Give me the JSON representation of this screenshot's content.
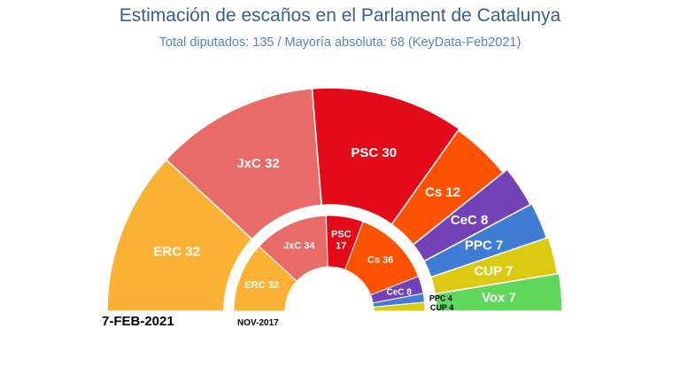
{
  "header": {
    "title": "Estimación de escaños en el Parlament de Catalunya",
    "subtitle": "Total diputados: 135 / Mayoría absoluta: 68 (KeyData-Feb2021)"
  },
  "chart_data": [
    {
      "type": "parliament-donut",
      "date_label": "7-FEB-2021",
      "total": 135,
      "series": [
        {
          "party": "ERC",
          "seats": 32,
          "label": "ERC 32",
          "color": "#fbb133"
        },
        {
          "party": "JxC",
          "seats": 32,
          "label": "JxC 32",
          "color": "#e96b68"
        },
        {
          "party": "PSC",
          "seats": 30,
          "label": "PSC 30",
          "color": "#e30b18"
        },
        {
          "party": "Cs",
          "seats": 12,
          "label": "Cs 12",
          "color": "#fd5201"
        },
        {
          "party": "CeC",
          "seats": 8,
          "label": "CeC 8",
          "color": "#7442b8"
        },
        {
          "party": "PPC",
          "seats": 7,
          "label": "PPC 7",
          "color": "#3f7dd4"
        },
        {
          "party": "CUP",
          "seats": 7,
          "label": "CUP 7",
          "color": "#dcca12"
        },
        {
          "party": "Vox",
          "seats": 7,
          "label": "Vox 7",
          "color": "#5ed75a"
        }
      ]
    },
    {
      "type": "parliament-donut",
      "date_label": "NOV-2017",
      "total": 135,
      "series": [
        {
          "party": "ERC",
          "seats": 32,
          "label": "ERC 32",
          "color": "#fbb133"
        },
        {
          "party": "JxC",
          "seats": 34,
          "label": "JxC 34",
          "color": "#e96b68"
        },
        {
          "party": "PSC",
          "seats": 17,
          "label": "PSC\n17",
          "color": "#e30b18"
        },
        {
          "party": "Cs",
          "seats": 36,
          "label": "Cs 36",
          "color": "#fd5201"
        },
        {
          "party": "CeC",
          "seats": 8,
          "label": "CeC 8",
          "color": "#7442b8"
        },
        {
          "party": "PPC",
          "seats": 4,
          "label": "PPC 4",
          "color": "#3f7dd4"
        },
        {
          "party": "CUP",
          "seats": 4,
          "label": "CUP 4",
          "color": "#dcca12"
        }
      ]
    }
  ]
}
